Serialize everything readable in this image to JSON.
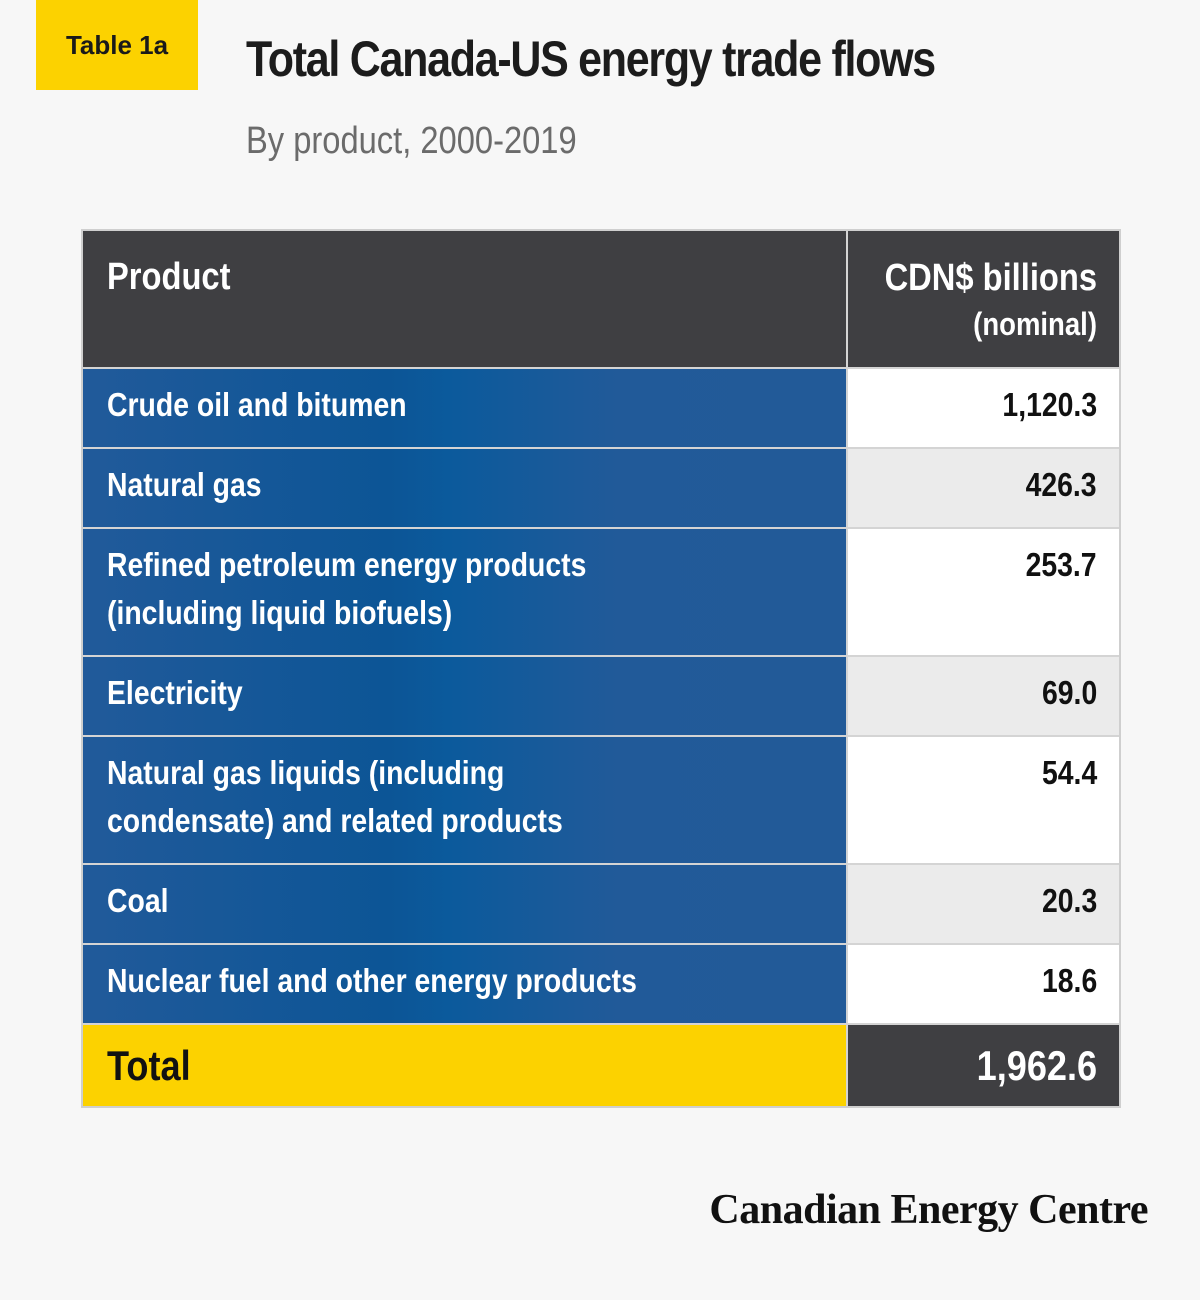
{
  "badge": "Table 1a",
  "title": "Total Canada-US energy trade flows",
  "subtitle": "By product, 2000-2019",
  "table": {
    "header": {
      "product": "Product",
      "value_line1": "CDN$ billions",
      "value_line2": "(nominal)"
    },
    "rows": [
      {
        "product": "Crude oil and bitumen",
        "value": "1,120.3"
      },
      {
        "product": "Natural gas",
        "value": "426.3"
      },
      {
        "product": "Refined petroleum energy products\n(including liquid biofuels)",
        "value": "253.7"
      },
      {
        "product": "Electricity",
        "value": "69.0"
      },
      {
        "product": "Natural gas liquids (including\ncondensate) and related products",
        "value": "54.4"
      },
      {
        "product": "Coal",
        "value": "20.3"
      },
      {
        "product": "Nuclear fuel and other energy products",
        "value": "18.6"
      }
    ],
    "total": {
      "product": "Total",
      "value": "1,962.6"
    }
  },
  "logo": "Canadian Energy Centre",
  "colors": {
    "yellow": "#fcd200",
    "dark": "#3f3f42",
    "blue": "#215a9a"
  }
}
